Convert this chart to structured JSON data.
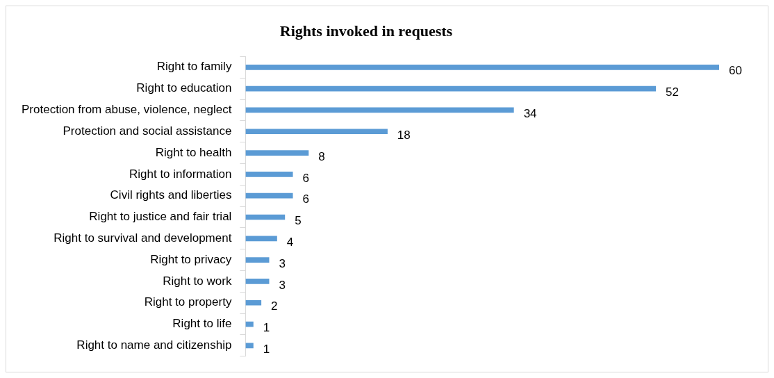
{
  "chart_data": {
    "type": "bar",
    "orientation": "horizontal",
    "title": "Rights invoked in requests",
    "categories": [
      "Right to family",
      "Right to education",
      "Protection from abuse, violence, neglect",
      "Protection and social assistance",
      "Right to health",
      "Right to information",
      "Civil rights and liberties",
      "Right to justice and fair trial",
      "Right to survival and development",
      "Right to privacy",
      "Right to work",
      "Right to property",
      "Right to life",
      "Right to name and citizenship"
    ],
    "values": [
      60,
      52,
      34,
      18,
      8,
      6,
      6,
      5,
      4,
      3,
      3,
      2,
      1,
      1
    ],
    "color": "#5b9bd5",
    "data_labels": true,
    "legend": false
  }
}
